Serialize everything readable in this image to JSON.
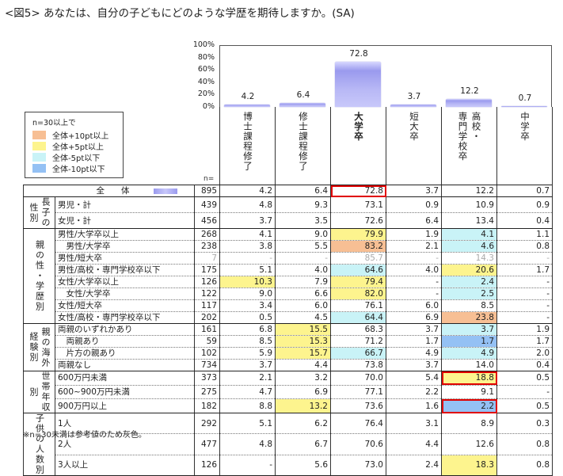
{
  "title": "<図5> あなたは、自分の子どもにどのような学歴を期待しますか。(SA)",
  "chart_data": {
    "type": "bar",
    "title": "<図5> あなたは、自分の子どもにどのような学歴を期待しますか。(SA)",
    "categories": [
      "博士課程修了",
      "修士課程修了",
      "大学卒",
      "短大卒",
      "高校・専門学校卒",
      "中学卒"
    ],
    "values": [
      4.2,
      6.4,
      72.8,
      3.7,
      12.2,
      0.7
    ],
    "ylabel": "",
    "xlabel": "",
    "ylim": [
      0,
      100
    ],
    "yticks": [
      "100%",
      "80%",
      "60%",
      "40%",
      "20%",
      "0%"
    ],
    "grid": false,
    "legend_position": "left",
    "legend": {
      "title": "n=30以上で",
      "items": [
        {
          "label": "全体+10pt以上",
          "color": "#f7bf94"
        },
        {
          "label": "全体+5pt以上",
          "color": "#fdf48e"
        },
        {
          "label": "全体-5pt以下",
          "color": "#c9f3f7"
        },
        {
          "label": "全体-10pt以下",
          "color": "#94c1f4"
        }
      ]
    }
  },
  "columns": [
    {
      "lines": [
        "博",
        "士",
        "課",
        "程",
        "修",
        "了"
      ],
      "bold": false
    },
    {
      "lines": [
        "修",
        "士",
        "課",
        "程",
        "修",
        "了"
      ],
      "bold": false
    },
    {
      "lines": [
        "大",
        "学",
        "卒"
      ],
      "bold": true
    },
    {
      "lines": [
        "短",
        "大",
        "卒"
      ],
      "bold": false
    },
    {
      "lines": [
        "高校・",
        "専門学校卒"
      ],
      "bold": false
    },
    {
      "lines": [
        "中",
        "学",
        "卒"
      ],
      "bold": false
    }
  ],
  "n_label": "n=",
  "total": {
    "label": "全　　体",
    "n": "895",
    "values": [
      "4.2",
      "6.4",
      "72.8",
      "3.7",
      "12.2",
      "0.7"
    ]
  },
  "sections": [
    {
      "group": [
        "長子の",
        "性別"
      ],
      "rows": [
        {
          "label": "男児・計",
          "n": "439",
          "values": [
            "4.8",
            "9.3",
            "73.1",
            "0.9",
            "10.9",
            "0.9"
          ]
        },
        {
          "label": "女児・計",
          "n": "456",
          "values": [
            "3.7",
            "3.5",
            "72.6",
            "6.4",
            "13.4",
            "0.4"
          ]
        }
      ]
    },
    {
      "group": [
        "親の性・学歴別"
      ],
      "rows": [
        {
          "label": "男性/大学卒以上",
          "n": "268",
          "values": [
            "4.1",
            "9.0",
            "79.9",
            "1.9",
            "4.1",
            "1.1"
          ]
        },
        {
          "label": "　男性/大学卒",
          "n": "238",
          "values": [
            "3.8",
            "5.5",
            "83.2",
            "2.1",
            "4.6",
            "0.8"
          ]
        },
        {
          "label": "男性/短大卒",
          "n": "7",
          "values": [
            "-",
            "-",
            "85.7",
            "-",
            "14.3",
            "-"
          ]
        },
        {
          "label": "男性/高校・専門学校卒以下",
          "n": "175",
          "values": [
            "5.1",
            "4.0",
            "64.6",
            "4.0",
            "20.6",
            "1.7"
          ]
        },
        {
          "label": "女性/大学卒以上",
          "n": "126",
          "values": [
            "10.3",
            "7.9",
            "79.4",
            "-",
            "2.4",
            "-"
          ]
        },
        {
          "label": "　女性/大学卒",
          "n": "122",
          "values": [
            "9.0",
            "6.6",
            "82.0",
            "-",
            "2.5",
            "-"
          ]
        },
        {
          "label": "女性/短大卒",
          "n": "117",
          "values": [
            "3.4",
            "6.0",
            "76.1",
            "6.0",
            "8.5",
            "-"
          ]
        },
        {
          "label": "女性/高校・専門学校卒以下",
          "n": "202",
          "values": [
            "0.5",
            "4.5",
            "64.4",
            "6.9",
            "23.8",
            "-"
          ]
        }
      ]
    },
    {
      "group": [
        "親の海外",
        "経験別"
      ],
      "rows": [
        {
          "label": "両親のいずれかあり",
          "n": "161",
          "values": [
            "6.8",
            "15.5",
            "68.3",
            "3.7",
            "3.7",
            "1.9"
          ]
        },
        {
          "label": "　両親あり",
          "n": "59",
          "values": [
            "8.5",
            "15.3",
            "71.2",
            "1.7",
            "1.7",
            "1.7"
          ]
        },
        {
          "label": "　片方の親あり",
          "n": "102",
          "values": [
            "5.9",
            "15.7",
            "66.7",
            "4.9",
            "4.9",
            "2.0"
          ]
        },
        {
          "label": "両親なし",
          "n": "734",
          "values": [
            "3.7",
            "4.4",
            "73.8",
            "3.7",
            "14.0",
            "0.4"
          ]
        }
      ]
    },
    {
      "group": [
        "世帯年収",
        "別"
      ],
      "rows": [
        {
          "label": "600万円未満",
          "n": "373",
          "values": [
            "2.1",
            "3.2",
            "70.0",
            "5.4",
            "18.8",
            "0.5"
          ]
        },
        {
          "label": "600~900万円未満",
          "n": "275",
          "values": [
            "4.7",
            "6.9",
            "77.1",
            "2.2",
            "9.1",
            "-"
          ]
        },
        {
          "label": "900万円以上",
          "n": "182",
          "values": [
            "8.8",
            "13.2",
            "73.6",
            "1.6",
            "2.2",
            "0.5"
          ]
        }
      ]
    },
    {
      "group": [
        "子供の人数別"
      ],
      "rows": [
        {
          "label": "1人",
          "n": "292",
          "values": [
            "5.1",
            "6.2",
            "76.4",
            "3.1",
            "8.9",
            "0.3"
          ]
        },
        {
          "label": "2人",
          "n": "477",
          "values": [
            "4.8",
            "6.7",
            "70.6",
            "4.4",
            "12.6",
            "0.8"
          ]
        },
        {
          "label": "3人以上",
          "n": "126",
          "values": [
            "-",
            "5.6",
            "73.0",
            "2.4",
            "18.3",
            "0.8"
          ]
        }
      ]
    }
  ],
  "highlights": {
    "orange": "#f7bf94",
    "yellow": "#fdf48e",
    "light_blue": "#c9f3f7",
    "blue": "#94c1f4",
    "red_box": "#e00000"
  },
  "note": "※n=30未満は参考値のため灰色。"
}
